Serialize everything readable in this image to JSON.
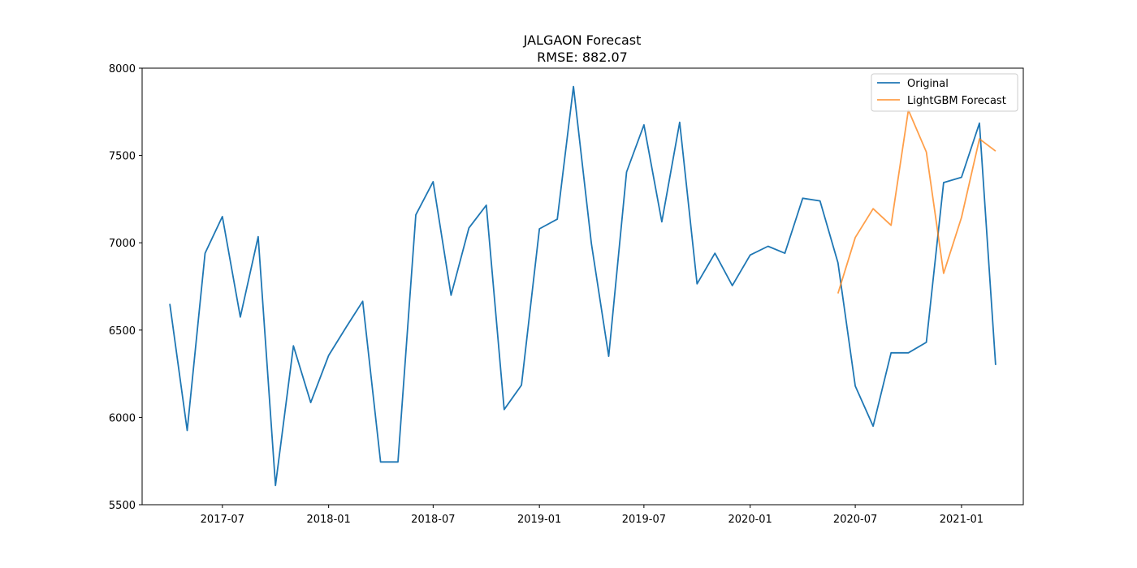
{
  "chart_data": {
    "type": "line",
    "title": "JALGAON Forecast",
    "subtitle": "RMSE: 882.07",
    "xlabel": "",
    "ylabel": "",
    "ylim": [
      5500,
      8000
    ],
    "xlim": [
      "2017-02-12",
      "2021-04-18"
    ],
    "grid": false,
    "legend_position": "top-right",
    "x_ticks": [
      "2017-07",
      "2018-01",
      "2018-07",
      "2019-01",
      "2019-07",
      "2020-01",
      "2020-07",
      "2021-01"
    ],
    "y_ticks": [
      5500,
      6000,
      6500,
      7000,
      7500,
      8000
    ],
    "series": [
      {
        "name": "Original",
        "color": "#1f77b4",
        "points": [
          [
            "2017-04",
            6650
          ],
          [
            "2017-05",
            5925
          ],
          [
            "2017-06",
            6940
          ],
          [
            "2017-07",
            7150
          ],
          [
            "2017-08",
            6575
          ],
          [
            "2017-09",
            7035
          ],
          [
            "2017-10",
            5610
          ],
          [
            "2017-11",
            6410
          ],
          [
            "2017-12",
            6085
          ],
          [
            "2018-01",
            6355
          ],
          [
            "2018-02",
            6520
          ],
          [
            "2018-03",
            6665
          ],
          [
            "2018-04",
            5745
          ],
          [
            "2018-05",
            5745
          ],
          [
            "2018-06",
            7160
          ],
          [
            "2018-07",
            7350
          ],
          [
            "2018-08",
            6700
          ],
          [
            "2018-09",
            7085
          ],
          [
            "2018-10",
            7215
          ],
          [
            "2018-11",
            6045
          ],
          [
            "2018-12",
            6185
          ],
          [
            "2019-01",
            7080
          ],
          [
            "2019-02",
            7135
          ],
          [
            "2019-03",
            7895
          ],
          [
            "2019-04",
            6995
          ],
          [
            "2019-05",
            6350
          ],
          [
            "2019-06",
            7405
          ],
          [
            "2019-07",
            7675
          ],
          [
            "2019-08",
            7120
          ],
          [
            "2019-09",
            7690
          ],
          [
            "2019-10",
            6765
          ],
          [
            "2019-11",
            6940
          ],
          [
            "2019-12",
            6755
          ],
          [
            "2020-01",
            6930
          ],
          [
            "2020-02",
            6980
          ],
          [
            "2020-03",
            6940
          ],
          [
            "2020-04",
            7255
          ],
          [
            "2020-05",
            7240
          ],
          [
            "2020-06",
            6885
          ],
          [
            "2020-07",
            6180
          ],
          [
            "2020-08",
            5950
          ],
          [
            "2020-09",
            6370
          ],
          [
            "2020-10",
            6370
          ],
          [
            "2020-11",
            6430
          ],
          [
            "2020-12",
            7345
          ],
          [
            "2021-01",
            7375
          ],
          [
            "2021-02",
            7685
          ],
          [
            "2021-03",
            6300
          ]
        ]
      },
      {
        "name": "LightGBM Forecast",
        "color": "#ff7f0e",
        "points": [
          [
            "2020-06",
            6710
          ],
          [
            "2020-07",
            7030
          ],
          [
            "2020-08",
            7195
          ],
          [
            "2020-09",
            7100
          ],
          [
            "2020-10",
            7760
          ],
          [
            "2020-11",
            7520
          ],
          [
            "2020-12",
            6825
          ],
          [
            "2021-01",
            7145
          ],
          [
            "2021-02",
            7595
          ],
          [
            "2021-03",
            7525
          ]
        ]
      }
    ]
  }
}
